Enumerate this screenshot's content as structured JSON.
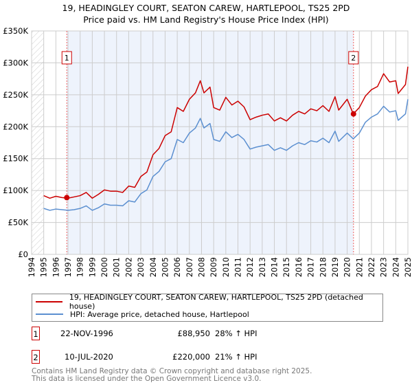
{
  "chart_data": {
    "type": "line",
    "title": "19, HEADINGLEY COURT, SEATON CAREW, HARTLEPOOL, TS25 2PD",
    "subtitle": "Price paid vs. HM Land Registry's House Price Index (HPI)",
    "xlim": [
      1994,
      2025
    ],
    "ylim": [
      0,
      350000
    ],
    "y_ticks": [
      0,
      50000,
      100000,
      150000,
      200000,
      250000,
      300000,
      350000
    ],
    "y_tick_labels": [
      "£0",
      "£50K",
      "£100K",
      "£150K",
      "£200K",
      "£250K",
      "£300K",
      "£350K"
    ],
    "x_ticks": [
      "1994",
      "1995",
      "1996",
      "1997",
      "1998",
      "1999",
      "2000",
      "2001",
      "2002",
      "2003",
      "2004",
      "2005",
      "2006",
      "2007",
      "2008",
      "2009",
      "2010",
      "2011",
      "2012",
      "2013",
      "2014",
      "2015",
      "2016",
      "2017",
      "2018",
      "2019",
      "2020",
      "2021",
      "2022",
      "2023",
      "2024",
      "2025"
    ],
    "grid": true,
    "legend_placement": "below",
    "x": [
      1995,
      1995.5,
      1996,
      1996.5,
      1997,
      1997.5,
      1998,
      1998.5,
      1999,
      1999.5,
      2000,
      2000.5,
      2001,
      2001.5,
      2002,
      2002.5,
      2003,
      2003.5,
      2004,
      2004.5,
      2005,
      2005.5,
      2006,
      2006.5,
      2007,
      2007.5,
      2007.9,
      2008.2,
      2008.7,
      2009,
      2009.5,
      2010,
      2010.5,
      2011,
      2011.5,
      2012,
      2012.5,
      2013,
      2013.5,
      2014,
      2014.5,
      2015,
      2015.5,
      2016,
      2016.5,
      2017,
      2017.5,
      2018,
      2018.5,
      2019,
      2019.3,
      2020,
      2020.5,
      2021,
      2021.5,
      2022,
      2022.5,
      2023,
      2023.5,
      2024,
      2024.2,
      2024.8,
      2025
    ],
    "series": [
      {
        "name": "19, HEADINGLEY COURT, SEATON CAREW, HARTLEPOOL, TS25 2PD (detached house)",
        "color": "#cc0000",
        "values": [
          92000,
          88000,
          91000,
          89000,
          88000,
          90000,
          92000,
          97000,
          88000,
          94000,
          101000,
          99000,
          99000,
          97000,
          107000,
          105000,
          122000,
          129000,
          156000,
          166000,
          186000,
          192000,
          230000,
          224000,
          243000,
          253000,
          272000,
          253000,
          262000,
          230000,
          226000,
          246000,
          234000,
          240000,
          231000,
          211000,
          215000,
          218000,
          220000,
          209000,
          214000,
          209000,
          218000,
          224000,
          220000,
          228000,
          225000,
          233000,
          224000,
          247000,
          226000,
          243000,
          220000,
          230000,
          248000,
          258000,
          263000,
          283000,
          270000,
          272000,
          252000,
          266000,
          294000
        ]
      },
      {
        "name": "HPI: Average price, detached house, Hartlepool",
        "color": "#5b8fd0",
        "values": [
          72000,
          69000,
          71000,
          70000,
          69000,
          70000,
          72000,
          76000,
          69000,
          73000,
          79000,
          77000,
          77000,
          76000,
          84000,
          82000,
          95000,
          101000,
          122000,
          130000,
          145000,
          150000,
          180000,
          175000,
          190000,
          198000,
          213000,
          198000,
          205000,
          180000,
          177000,
          192000,
          183000,
          188000,
          180000,
          165000,
          168000,
          170000,
          172000,
          163000,
          167000,
          163000,
          170000,
          175000,
          172000,
          178000,
          176000,
          182000,
          175000,
          193000,
          177000,
          190000,
          181000,
          190000,
          207000,
          215000,
          220000,
          232000,
          223000,
          225000,
          210000,
          220000,
          243000
        ]
      }
    ],
    "sales": [
      {
        "label": "1",
        "x": 1996.9,
        "y": 88950
      },
      {
        "label": "2",
        "x": 2020.52,
        "y": 220000
      }
    ]
  },
  "table": [
    {
      "num": "1",
      "date": "22-NOV-1996",
      "price": "£88,950",
      "hpi": "28% ↑ HPI"
    },
    {
      "num": "2",
      "date": "10-JUL-2020",
      "price": "£220,000",
      "hpi": "21% ↑ HPI"
    }
  ],
  "footer": [
    "Contains HM Land Registry data © Crown copyright and database right 2025.",
    "This data is licensed under the Open Government Licence v3.0."
  ]
}
